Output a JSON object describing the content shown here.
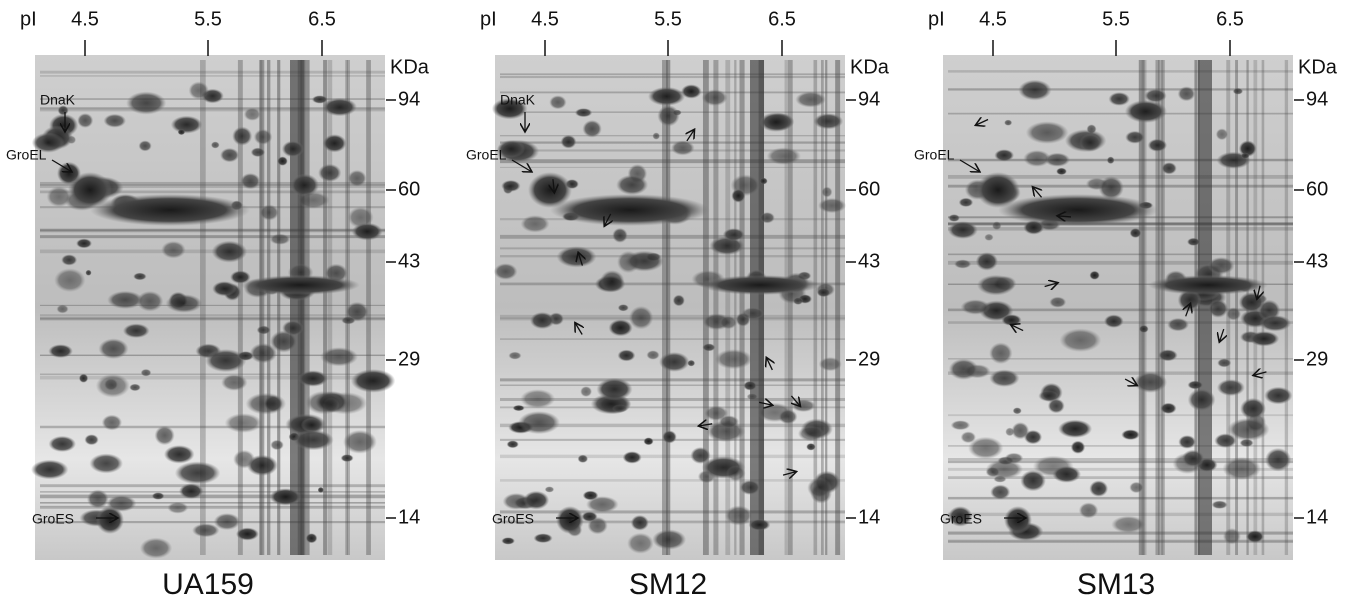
{
  "panels": [
    {
      "caption": "UA159",
      "pi_label": "pI",
      "pi_ticks": [
        "4.5",
        "5.5",
        "6.5"
      ],
      "mw_label": "KDa",
      "mw_ticks": [
        "94",
        "60",
        "43",
        "29",
        "14"
      ],
      "proteins": [
        "DnaK",
        "GroEL",
        "GroES"
      ]
    },
    {
      "caption": "SM12",
      "pi_label": "pI",
      "pi_ticks": [
        "4.5",
        "5.5",
        "6.5"
      ],
      "mw_label": "KDa",
      "mw_ticks": [
        "94",
        "60",
        "43",
        "29",
        "14"
      ],
      "proteins": [
        "DnaK",
        "GroEL",
        "GroES"
      ]
    },
    {
      "caption": "SM13",
      "pi_label": "pI",
      "pi_ticks": [
        "4.5",
        "5.5",
        "6.5"
      ],
      "mw_label": "KDa",
      "mw_ticks": [
        "94",
        "60",
        "43",
        "29",
        "14"
      ],
      "proteins": [
        "GroEL",
        "GroES"
      ]
    }
  ]
}
